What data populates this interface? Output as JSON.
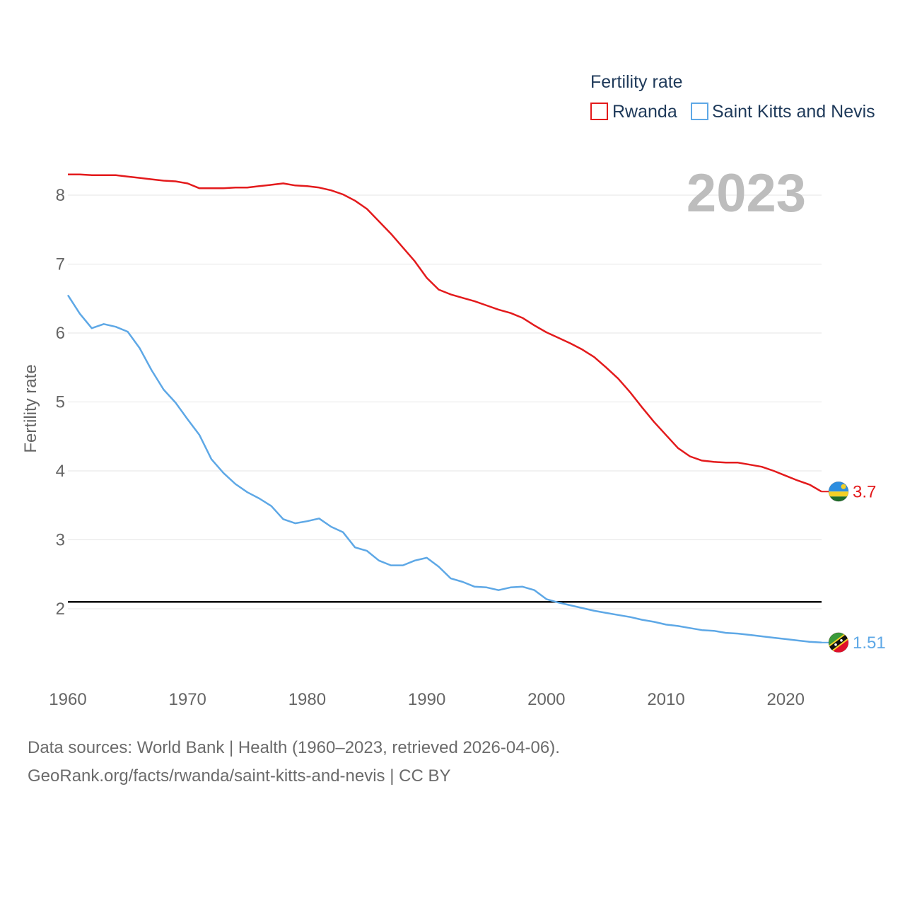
{
  "chart_data": {
    "type": "line",
    "legend_title": "Fertility rate",
    "ylabel": "Fertility rate",
    "xlabel": "",
    "year_display": "2023",
    "xlim": [
      1960,
      2023
    ],
    "ylim": [
      0.9,
      8.6
    ],
    "yticks": [
      2,
      3,
      4,
      5,
      6,
      7,
      8
    ],
    "xticks": [
      1960,
      1970,
      1980,
      1990,
      2000,
      2010,
      2020
    ],
    "reference_line": 2.1,
    "legend_position": "top-right",
    "series": [
      {
        "name": "Rwanda",
        "color": "#e31a1c",
        "end_label": "3.7",
        "icon": "rwanda-flag-icon",
        "x": [
          1960,
          1961,
          1962,
          1963,
          1964,
          1965,
          1966,
          1967,
          1968,
          1969,
          1970,
          1971,
          1972,
          1973,
          1974,
          1975,
          1976,
          1977,
          1978,
          1979,
          1980,
          1981,
          1982,
          1983,
          1984,
          1985,
          1986,
          1987,
          1988,
          1989,
          1990,
          1991,
          1992,
          1993,
          1994,
          1995,
          1996,
          1997,
          1998,
          1999,
          2000,
          2001,
          2002,
          2003,
          2004,
          2005,
          2006,
          2007,
          2008,
          2009,
          2010,
          2011,
          2012,
          2013,
          2014,
          2015,
          2016,
          2017,
          2018,
          2019,
          2020,
          2021,
          2022,
          2023
        ],
        "values": [
          8.3,
          8.3,
          8.29,
          8.29,
          8.29,
          8.27,
          8.25,
          8.23,
          8.21,
          8.2,
          8.17,
          8.1,
          8.1,
          8.1,
          8.11,
          8.11,
          8.13,
          8.15,
          8.17,
          8.14,
          8.13,
          8.11,
          8.07,
          8.01,
          7.92,
          7.8,
          7.62,
          7.44,
          7.24,
          7.04,
          6.8,
          6.63,
          6.56,
          6.51,
          6.46,
          6.4,
          6.34,
          6.29,
          6.22,
          6.11,
          6.01,
          5.93,
          5.85,
          5.76,
          5.65,
          5.5,
          5.34,
          5.14,
          4.92,
          4.71,
          4.52,
          4.33,
          4.21,
          4.15,
          4.13,
          4.12,
          4.12,
          4.09,
          4.06,
          4.0,
          3.93,
          3.86,
          3.8,
          3.7
        ]
      },
      {
        "name": "Saint Kitts and Nevis",
        "color": "#5ea8e6",
        "end_label": "1.51",
        "icon": "saint-kitts-and-nevis-flag-icon",
        "x": [
          1960,
          1961,
          1962,
          1963,
          1964,
          1965,
          1966,
          1967,
          1968,
          1969,
          1970,
          1971,
          1972,
          1973,
          1974,
          1975,
          1976,
          1977,
          1978,
          1979,
          1980,
          1981,
          1982,
          1983,
          1984,
          1985,
          1986,
          1987,
          1988,
          1989,
          1990,
          1991,
          1992,
          1993,
          1994,
          1995,
          1996,
          1997,
          1998,
          1999,
          2000,
          2001,
          2002,
          2003,
          2004,
          2005,
          2006,
          2007,
          2008,
          2009,
          2010,
          2011,
          2012,
          2013,
          2014,
          2015,
          2016,
          2017,
          2018,
          2019,
          2020,
          2021,
          2022,
          2023
        ],
        "values": [
          6.55,
          6.28,
          6.07,
          6.13,
          6.09,
          6.02,
          5.78,
          5.46,
          5.18,
          4.99,
          4.75,
          4.52,
          4.17,
          3.97,
          3.81,
          3.69,
          3.6,
          3.49,
          3.3,
          3.24,
          3.27,
          3.31,
          3.19,
          3.11,
          2.89,
          2.84,
          2.7,
          2.63,
          2.63,
          2.7,
          2.74,
          2.61,
          2.44,
          2.39,
          2.32,
          2.31,
          2.27,
          2.31,
          2.32,
          2.27,
          2.14,
          2.09,
          2.05,
          2.01,
          1.97,
          1.94,
          1.91,
          1.88,
          1.84,
          1.81,
          1.77,
          1.75,
          1.72,
          1.69,
          1.68,
          1.65,
          1.64,
          1.62,
          1.6,
          1.58,
          1.56,
          1.54,
          1.52,
          1.51
        ]
      }
    ]
  },
  "footer": {
    "line1": "Data sources: World Bank | Health (1960–2023, retrieved 2026-04-06).",
    "line2": "GeoRank.org/facts/rwanda/saint-kitts-and-nevis | CC BY"
  }
}
